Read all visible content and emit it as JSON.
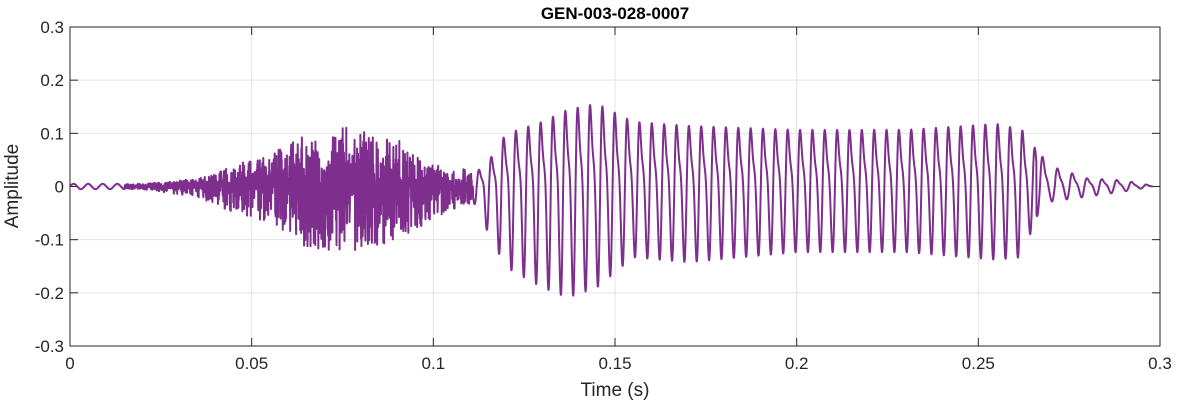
{
  "chart_data": {
    "type": "line",
    "title": "GEN-003-028-0007",
    "xlabel": "Time (s)",
    "ylabel": "Amplitude",
    "xlim": [
      0,
      0.3
    ],
    "ylim": [
      -0.3,
      0.3
    ],
    "xticks": [
      "0",
      "0.05",
      "0.1",
      "0.15",
      "0.2",
      "0.25",
      "0.3"
    ],
    "yticks": [
      "-0.3",
      "-0.2",
      "-0.1",
      "0",
      "0.1",
      "0.2",
      "0.3"
    ],
    "grid": true,
    "line_color": "#7E2F8E",
    "waveform_envelope": {
      "t": [
        0,
        0.02,
        0.035,
        0.045,
        0.055,
        0.065,
        0.078,
        0.09,
        0.1,
        0.111,
        0.115,
        0.12,
        0.13,
        0.137,
        0.145,
        0.155,
        0.17,
        0.2,
        0.23,
        0.255,
        0.262,
        0.266,
        0.27,
        0.28,
        0.29,
        0.298
      ],
      "upper": [
        0.005,
        0.005,
        0.015,
        0.04,
        0.06,
        0.1,
        0.115,
        0.09,
        0.04,
        0.03,
        0.06,
        0.13,
        0.16,
        0.19,
        0.205,
        0.16,
        0.15,
        0.14,
        0.14,
        0.155,
        0.14,
        0.09,
        0.05,
        0.02,
        0.015,
        0.002
      ],
      "lower": [
        -0.005,
        -0.005,
        -0.02,
        -0.05,
        -0.07,
        -0.12,
        -0.12,
        -0.11,
        -0.06,
        -0.03,
        -0.09,
        -0.16,
        -0.2,
        -0.22,
        -0.2,
        -0.14,
        -0.15,
        -0.13,
        -0.13,
        -0.145,
        -0.14,
        -0.06,
        -0.03,
        -0.02,
        -0.01,
        0
      ]
    },
    "voicing_period_s": 0.0034,
    "voiced_interval_s": [
      0.112,
      0.266
    ]
  }
}
